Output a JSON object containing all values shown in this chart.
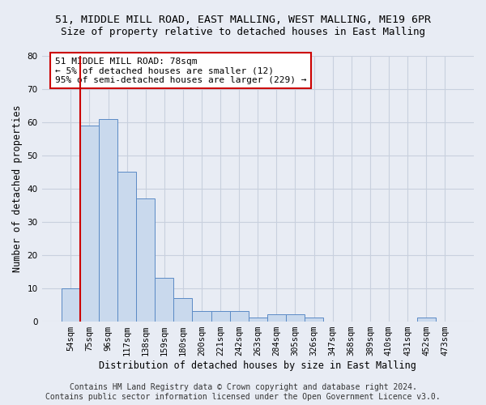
{
  "title": "51, MIDDLE MILL ROAD, EAST MALLING, WEST MALLING, ME19 6PR",
  "subtitle": "Size of property relative to detached houses in East Malling",
  "xlabel": "Distribution of detached houses by size in East Malling",
  "ylabel": "Number of detached properties",
  "categories": [
    "54sqm",
    "75sqm",
    "96sqm",
    "117sqm",
    "138sqm",
    "159sqm",
    "180sqm",
    "200sqm",
    "221sqm",
    "242sqm",
    "263sqm",
    "284sqm",
    "305sqm",
    "326sqm",
    "347sqm",
    "368sqm",
    "389sqm",
    "410sqm",
    "431sqm",
    "452sqm",
    "473sqm"
  ],
  "values": [
    10,
    59,
    61,
    45,
    37,
    13,
    7,
    3,
    3,
    3,
    1,
    2,
    2,
    1,
    0,
    0,
    0,
    0,
    0,
    1,
    0
  ],
  "bar_color": "#c9d9ed",
  "bar_edge_color": "#5b8ac5",
  "vline_x": 0.5,
  "vline_color": "#cc0000",
  "annotation_text": "51 MIDDLE MILL ROAD: 78sqm\n← 5% of detached houses are smaller (12)\n95% of semi-detached houses are larger (229) →",
  "annotation_box_color": "#ffffff",
  "annotation_box_edge_color": "#cc0000",
  "ylim": [
    0,
    80
  ],
  "yticks": [
    0,
    10,
    20,
    30,
    40,
    50,
    60,
    70,
    80
  ],
  "grid_color": "#c8d0de",
  "background_color": "#e8ecf4",
  "footer_line1": "Contains HM Land Registry data © Crown copyright and database right 2024.",
  "footer_line2": "Contains public sector information licensed under the Open Government Licence v3.0.",
  "title_fontsize": 9.5,
  "subtitle_fontsize": 9,
  "axis_label_fontsize": 8.5,
  "tick_fontsize": 7.5,
  "annotation_fontsize": 8,
  "footer_fontsize": 7
}
